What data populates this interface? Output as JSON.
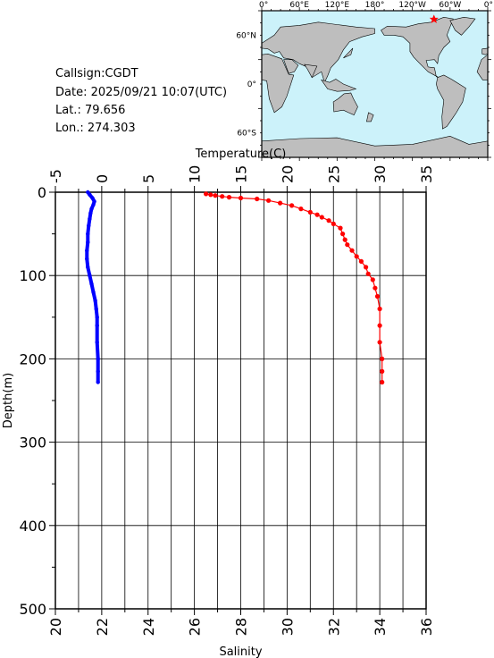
{
  "info": {
    "callsign_line": "Callsign:CGDT",
    "date_line": "Date:  2025/09/21 10:07(UTC)",
    "lat_line": "Lat.:  79.656",
    "lon_line": "Lon.:  274.303"
  },
  "map": {
    "top_labels": [
      "0°",
      "60°E",
      "120°E",
      "180°",
      "120°W",
      "60°W",
      "0°"
    ],
    "lat_labels": [
      "60°N",
      "0°",
      "60°S"
    ],
    "ocean_color": "#ccf2fa",
    "land_color": "#bebebe",
    "station_marker_color": "#ff0000"
  },
  "chart_data": {
    "type": "line",
    "top_axis": {
      "label": "Temperature(C)",
      "range": [
        -5,
        35
      ],
      "ticks": [
        -5,
        0,
        5,
        10,
        15,
        20,
        25,
        30,
        35
      ]
    },
    "bottom_axis": {
      "label": "Salinity",
      "range": [
        20,
        36
      ],
      "ticks": [
        20,
        22,
        24,
        26,
        28,
        30,
        32,
        34,
        36
      ]
    },
    "y_axis": {
      "label": "Depth(m)",
      "range": [
        0,
        500
      ],
      "inverted": true,
      "ticks": [
        0,
        100,
        200,
        300,
        400,
        500
      ]
    },
    "grid": true,
    "series": [
      {
        "axis": "temperature",
        "color": "#0000ff",
        "points": [
          [
            -1.5,
            0
          ],
          [
            -1.3,
            3
          ],
          [
            -1.0,
            7
          ],
          [
            -0.8,
            11
          ],
          [
            -0.9,
            15
          ],
          [
            -1.1,
            20
          ],
          [
            -1.2,
            25
          ],
          [
            -1.3,
            32
          ],
          [
            -1.4,
            40
          ],
          [
            -1.5,
            50
          ],
          [
            -1.5,
            60
          ],
          [
            -1.6,
            70
          ],
          [
            -1.6,
            80
          ],
          [
            -1.5,
            90
          ],
          [
            -1.3,
            100
          ],
          [
            -1.1,
            110
          ],
          [
            -0.9,
            120
          ],
          [
            -0.7,
            130
          ],
          [
            -0.6,
            140
          ],
          [
            -0.5,
            150
          ],
          [
            -0.5,
            160
          ],
          [
            -0.5,
            180
          ],
          [
            -0.4,
            200
          ],
          [
            -0.4,
            215
          ],
          [
            -0.4,
            228
          ]
        ]
      },
      {
        "axis": "salinity",
        "color": "#ff0000",
        "points": [
          [
            26.5,
            2
          ],
          [
            26.7,
            3
          ],
          [
            26.9,
            4
          ],
          [
            27.2,
            5
          ],
          [
            27.5,
            6
          ],
          [
            28.0,
            7
          ],
          [
            28.7,
            8
          ],
          [
            29.2,
            10
          ],
          [
            29.7,
            13
          ],
          [
            30.2,
            16
          ],
          [
            30.6,
            20
          ],
          [
            31.0,
            24
          ],
          [
            31.3,
            27
          ],
          [
            31.5,
            30
          ],
          [
            31.8,
            34
          ],
          [
            32.0,
            38
          ],
          [
            32.3,
            43
          ],
          [
            32.4,
            50
          ],
          [
            32.5,
            57
          ],
          [
            32.6,
            63
          ],
          [
            32.8,
            70
          ],
          [
            33.0,
            77
          ],
          [
            33.2,
            83
          ],
          [
            33.4,
            90
          ],
          [
            33.5,
            98
          ],
          [
            33.7,
            105
          ],
          [
            33.8,
            115
          ],
          [
            33.9,
            125
          ],
          [
            34.0,
            140
          ],
          [
            34.0,
            160
          ],
          [
            34.0,
            180
          ],
          [
            34.1,
            200
          ],
          [
            34.1,
            215
          ],
          [
            34.1,
            228
          ]
        ]
      }
    ]
  }
}
